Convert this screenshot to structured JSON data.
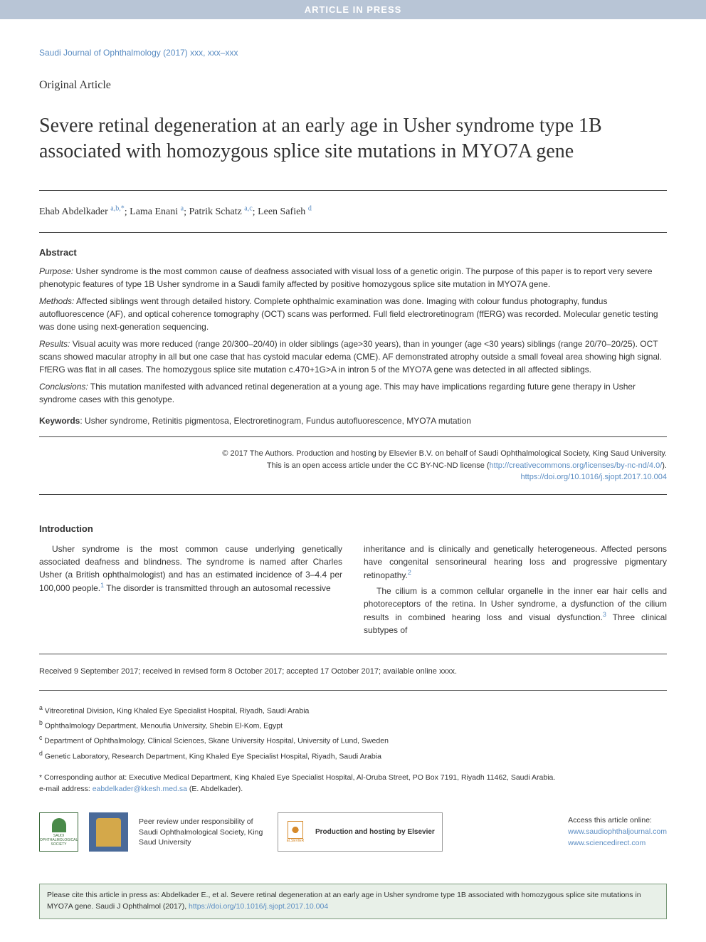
{
  "banner": "ARTICLE IN PRESS",
  "journal_ref": "Saudi Journal of Ophthalmology (2017) xxx, xxx–xxx",
  "article_type": "Original Article",
  "title": "Severe retinal degeneration at an early age in Usher syndrome type 1B associated with homozygous splice site mutations in MYO7A gene",
  "authors": [
    {
      "name": "Ehab Abdelkader",
      "aff": "a,b,*"
    },
    {
      "name": "Lama Enani",
      "aff": "a"
    },
    {
      "name": "Patrik Schatz",
      "aff": "a,c"
    },
    {
      "name": "Leen Safieh",
      "aff": "d"
    }
  ],
  "abstract": {
    "heading": "Abstract",
    "purpose_label": "Purpose:",
    "purpose": "Usher syndrome is the most common cause of deafness associated with visual loss of a genetic origin. The purpose of this paper is to report very severe phenotypic features of type 1B Usher syndrome in a Saudi family affected by positive homozygous splice site mutation in MYO7A gene.",
    "methods_label": "Methods:",
    "methods": "Affected siblings went through detailed history. Complete ophthalmic examination was done. Imaging with colour fundus photography, fundus autofluorescence (AF), and optical coherence tomography (OCT) scans was performed. Full field electroretinogram (ffERG) was recorded. Molecular genetic testing was done using next-generation sequencing.",
    "results_label": "Results:",
    "results": "Visual acuity was more reduced (range 20/300–20/40) in older siblings (age>30 years), than in younger (age <30 years) siblings (range 20/70–20/25). OCT scans showed macular atrophy in all but one case that has cystoid macular edema (CME). AF demonstrated atrophy outside a small foveal area showing high signal. FfERG was flat in all cases. The homozygous splice site mutation c.470+1G>A in intron 5 of the MYO7A gene was detected in all affected siblings.",
    "conclusions_label": "Conclusions:",
    "conclusions": "This mutation manifested with advanced retinal degeneration at a young age. This may have implications regarding future gene therapy in Usher syndrome cases with this genotype."
  },
  "keywords": {
    "label": "Keywords",
    "text": ": Usher syndrome, Retinitis pigmentosa, Electroretinogram, Fundus autofluorescence, MYO7A mutation"
  },
  "copyright": {
    "line1": "© 2017 The Authors. Production and hosting by Elsevier B.V. on behalf of Saudi Ophthalmological Society, King Saud University.",
    "line2": "This is an open access article under the CC BY-NC-ND license (",
    "license_url": "http://creativecommons.org/licenses/by-nc-nd/4.0/",
    "line2_close": ").",
    "doi": "https://doi.org/10.1016/j.sjopt.2017.10.004"
  },
  "intro": {
    "heading": "Introduction",
    "col1_p1": "Usher syndrome is the most common cause underlying genetically associated deafness and blindness. The syndrome is named after Charles Usher (a British ophthalmologist) and has an estimated incidence of 3–4.4 per 100,000 people.",
    "col1_p1_ref": "1",
    "col1_p2": "The disorder is transmitted through an autosomal recessive",
    "col2_p1": "inheritance and is clinically and genetically heterogeneous. Affected persons have congenital sensorineural hearing loss and progressive pigmentary retinopathy.",
    "col2_p1_ref": "2",
    "col2_p2": "The cilium is a common cellular organelle in the inner ear hair cells and photoreceptors of the retina. In Usher syndrome, a dysfunction of the cilium results in combined hearing loss and visual dysfunction.",
    "col2_p2_ref": "3",
    "col2_p2_cont": " Three clinical subtypes of"
  },
  "dates": "Received 9 September 2017; received in revised form 8 October 2017; accepted 17 October 2017; available online xxxx.",
  "affiliations": {
    "a": "Vitreoretinal Division, King Khaled Eye Specialist Hospital, Riyadh, Saudi Arabia",
    "b": "Ophthalmology Department, Menoufia University, Shebin El-Kom, Egypt",
    "c": "Department of Ophthalmology, Clinical Sciences, Skane University Hospital, University of Lund, Sweden",
    "d": "Genetic Laboratory, Research Department, King Khaled Eye Specialist Hospital, Riyadh, Saudi Arabia"
  },
  "corresponding": {
    "text": "* Corresponding author at: Executive Medical Department, King Khaled Eye Specialist Hospital, Al-Oruba Street, PO Box 7191, Riyadh 11462, Saudi Arabia.",
    "email_label": "e-mail address: ",
    "email": "eabdelkader@kkesh.med.sa",
    "email_name": " (E. Abdelkader)."
  },
  "footer": {
    "society_name": "SAUDI OPHTHALMOLOGICAL SOCIETY",
    "peer_review": "Peer review under responsibility of Saudi Ophthalmological Society, King Saud University",
    "elsevier": "ELSEVIER",
    "hosting": "Production and hosting by Elsevier",
    "access_label": "Access this article online:",
    "link1": "www.saudiophthaljournal.com",
    "link2": "www.sciencedirect.com"
  },
  "citation": {
    "text": "Please cite this article in press as: Abdelkader E., et al. Severe retinal degeneration at an early age in Usher syndrome type 1B associated with homozygous splice site mutations in MYO7A gene. Saudi J Ophthalmol (2017), ",
    "doi": "https://doi.org/10.1016/j.sjopt.2017.10.004"
  },
  "colors": {
    "banner_bg": "#b8c5d6",
    "link": "#5a8cc2",
    "citation_bg": "#e8f0e8",
    "citation_border": "#7a9a7a"
  }
}
